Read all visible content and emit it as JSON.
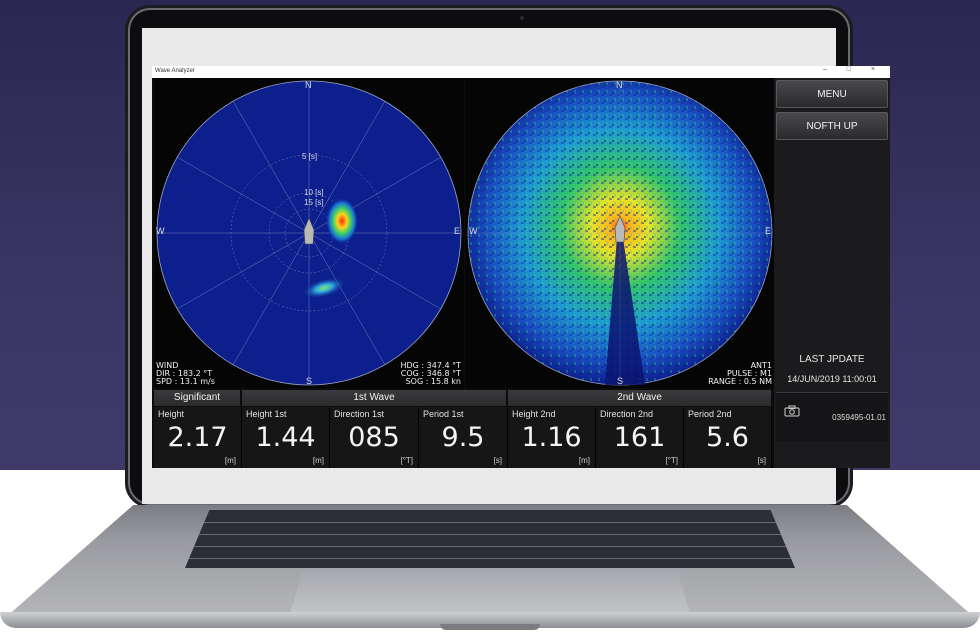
{
  "window": {
    "title": "Wave Analyzer",
    "controls": [
      "–",
      "□",
      "×"
    ]
  },
  "radar_left": {
    "north": "N",
    "south": "S",
    "east": "E",
    "west": "W",
    "ring_labels": [
      "5 [s]",
      "10 [s]",
      "15 [s]"
    ],
    "wind": {
      "title": "WIND",
      "dir": "DIR : 183.2 °T",
      "spd": "SPD : 13.1 m/s"
    },
    "nav": {
      "hdg": "HDG : 347.4 °T",
      "cog": "COG : 346.8 °T",
      "sog": "SOG : 15.8 kn"
    }
  },
  "radar_right": {
    "north": "N",
    "south": "S",
    "east": "E",
    "west": "W",
    "ant": "ANT1",
    "pulse": "PULSE : M1",
    "range": "RANGE : 0.5 NM"
  },
  "sidebar": {
    "menu_label": "MENU",
    "north_up_label": "NOFTH UP",
    "last_update_label": "LAST JPDATE",
    "last_update_value": "14/JUN/2019 11:00:01",
    "camera_icon": "camera-icon",
    "code": "0359495-01.01"
  },
  "readouts": {
    "headers": {
      "significant": "Significant",
      "first": "1st Wave",
      "second": "2nd Wave"
    },
    "cells": [
      {
        "label": "Height",
        "value": "2.17",
        "unit": "[m]"
      },
      {
        "label": "Height 1st",
        "value": "1.44",
        "unit": "[m]"
      },
      {
        "label": "Direction 1st",
        "value": "085",
        "unit": "[°T]"
      },
      {
        "label": "Period 1st",
        "value": "9.5",
        "unit": "[s]"
      },
      {
        "label": "Height 2nd",
        "value": "1.16",
        "unit": "[m]"
      },
      {
        "label": "Direction 2nd",
        "value": "161",
        "unit": "[°T]"
      },
      {
        "label": "Period 2nd",
        "value": "5.6",
        "unit": "[s]"
      }
    ]
  }
}
